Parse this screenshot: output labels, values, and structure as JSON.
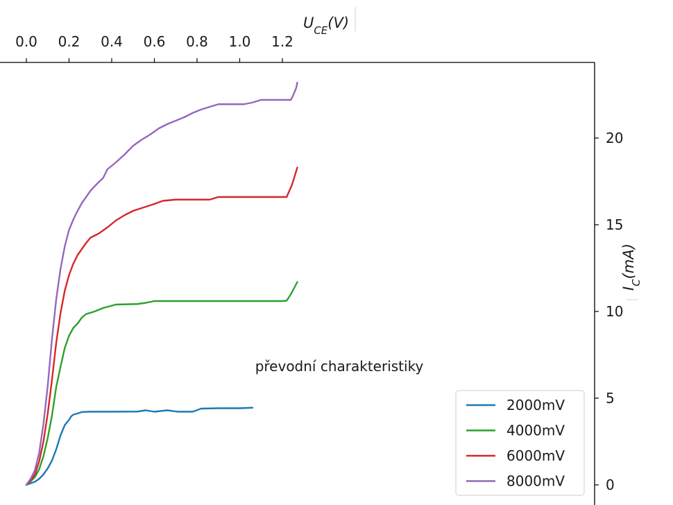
{
  "chart_data": {
    "type": "line",
    "title": "",
    "xlabel": "U_CE(V)",
    "ylabel": "I_C(mA)",
    "annotation": "převodní charakteristiky",
    "xlim": [
      -0.06,
      1.33
    ],
    "ylim": [
      -0.6,
      24.2
    ],
    "grid": false,
    "legend": {
      "placement": "bottom-right",
      "entries": [
        "2000mV",
        "4000mV",
        "6000mV",
        "8000mV"
      ]
    },
    "x_ticks": [
      0.0,
      0.2,
      0.4,
      0.6,
      0.8,
      1.0,
      1.2
    ],
    "x_tick_labels": [
      "0.0",
      "0.2",
      "0.4",
      "0.6",
      "0.8",
      "1.0",
      "1.2"
    ],
    "y_ticks": [
      0,
      5,
      10,
      15,
      20
    ],
    "y_tick_labels": [
      "0",
      "5",
      "10",
      "15",
      "20"
    ],
    "series": [
      {
        "name": "2000mV",
        "color": "#1f77b4",
        "points": [
          [
            0.0,
            0.0
          ],
          [
            0.04,
            0.18
          ],
          [
            0.06,
            0.35
          ],
          [
            0.08,
            0.6
          ],
          [
            0.1,
            0.95
          ],
          [
            0.12,
            1.4
          ],
          [
            0.14,
            2.05
          ],
          [
            0.15,
            2.45
          ],
          [
            0.16,
            2.85
          ],
          [
            0.18,
            3.45
          ],
          [
            0.2,
            3.75
          ],
          [
            0.21,
            3.95
          ],
          [
            0.22,
            4.05
          ],
          [
            0.24,
            4.12
          ],
          [
            0.26,
            4.2
          ],
          [
            0.3,
            4.22
          ],
          [
            0.4,
            4.22
          ],
          [
            0.52,
            4.23
          ],
          [
            0.56,
            4.3
          ],
          [
            0.6,
            4.22
          ],
          [
            0.66,
            4.3
          ],
          [
            0.71,
            4.22
          ],
          [
            0.78,
            4.22
          ],
          [
            0.82,
            4.4
          ],
          [
            0.9,
            4.42
          ],
          [
            1.0,
            4.42
          ],
          [
            1.06,
            4.45
          ]
        ]
      },
      {
        "name": "4000mV",
        "color": "#2ca02c",
        "points": [
          [
            0.0,
            0.0
          ],
          [
            0.02,
            0.2
          ],
          [
            0.04,
            0.45
          ],
          [
            0.06,
            0.9
          ],
          [
            0.08,
            1.65
          ],
          [
            0.1,
            2.7
          ],
          [
            0.12,
            4.0
          ],
          [
            0.14,
            5.65
          ],
          [
            0.16,
            6.8
          ],
          [
            0.18,
            7.9
          ],
          [
            0.2,
            8.6
          ],
          [
            0.22,
            9.05
          ],
          [
            0.24,
            9.3
          ],
          [
            0.26,
            9.65
          ],
          [
            0.28,
            9.85
          ],
          [
            0.32,
            10.0
          ],
          [
            0.36,
            10.2
          ],
          [
            0.42,
            10.4
          ],
          [
            0.52,
            10.43
          ],
          [
            0.56,
            10.5
          ],
          [
            0.6,
            10.6
          ],
          [
            1.0,
            10.6
          ],
          [
            1.2,
            10.6
          ],
          [
            1.22,
            10.62
          ],
          [
            1.24,
            11.0
          ],
          [
            1.27,
            11.7
          ]
        ]
      },
      {
        "name": "6000mV",
        "color": "#d62728",
        "points": [
          [
            0.0,
            0.0
          ],
          [
            0.02,
            0.25
          ],
          [
            0.04,
            0.6
          ],
          [
            0.06,
            1.35
          ],
          [
            0.08,
            2.5
          ],
          [
            0.1,
            4.1
          ],
          [
            0.12,
            6.05
          ],
          [
            0.14,
            8.2
          ],
          [
            0.16,
            9.9
          ],
          [
            0.18,
            11.2
          ],
          [
            0.2,
            12.1
          ],
          [
            0.22,
            12.75
          ],
          [
            0.24,
            13.25
          ],
          [
            0.26,
            13.6
          ],
          [
            0.28,
            13.95
          ],
          [
            0.3,
            14.25
          ],
          [
            0.34,
            14.5
          ],
          [
            0.38,
            14.85
          ],
          [
            0.42,
            15.25
          ],
          [
            0.46,
            15.55
          ],
          [
            0.5,
            15.8
          ],
          [
            0.55,
            16.0
          ],
          [
            0.6,
            16.2
          ],
          [
            0.64,
            16.38
          ],
          [
            0.7,
            16.45
          ],
          [
            0.86,
            16.45
          ],
          [
            0.9,
            16.6
          ],
          [
            1.0,
            16.6
          ],
          [
            1.22,
            16.6
          ],
          [
            1.245,
            17.3
          ],
          [
            1.27,
            18.3
          ]
        ]
      },
      {
        "name": "8000mV",
        "color": "#9467bd",
        "points": [
          [
            0.0,
            0.0
          ],
          [
            0.02,
            0.35
          ],
          [
            0.04,
            0.85
          ],
          [
            0.06,
            1.85
          ],
          [
            0.08,
            3.5
          ],
          [
            0.1,
            5.7
          ],
          [
            0.12,
            8.4
          ],
          [
            0.14,
            10.7
          ],
          [
            0.16,
            12.45
          ],
          [
            0.18,
            13.75
          ],
          [
            0.2,
            14.7
          ],
          [
            0.22,
            15.3
          ],
          [
            0.24,
            15.8
          ],
          [
            0.26,
            16.25
          ],
          [
            0.28,
            16.6
          ],
          [
            0.3,
            16.95
          ],
          [
            0.33,
            17.35
          ],
          [
            0.36,
            17.7
          ],
          [
            0.38,
            18.2
          ],
          [
            0.42,
            18.6
          ],
          [
            0.46,
            19.05
          ],
          [
            0.5,
            19.55
          ],
          [
            0.54,
            19.9
          ],
          [
            0.58,
            20.2
          ],
          [
            0.62,
            20.55
          ],
          [
            0.66,
            20.8
          ],
          [
            0.7,
            21.0
          ],
          [
            0.74,
            21.2
          ],
          [
            0.78,
            21.45
          ],
          [
            0.82,
            21.65
          ],
          [
            0.86,
            21.8
          ],
          [
            0.9,
            21.95
          ],
          [
            1.02,
            21.95
          ],
          [
            1.06,
            22.05
          ],
          [
            1.1,
            22.2
          ],
          [
            1.24,
            22.2
          ],
          [
            1.25,
            22.45
          ],
          [
            1.265,
            22.9
          ],
          [
            1.27,
            23.2
          ]
        ]
      }
    ]
  }
}
